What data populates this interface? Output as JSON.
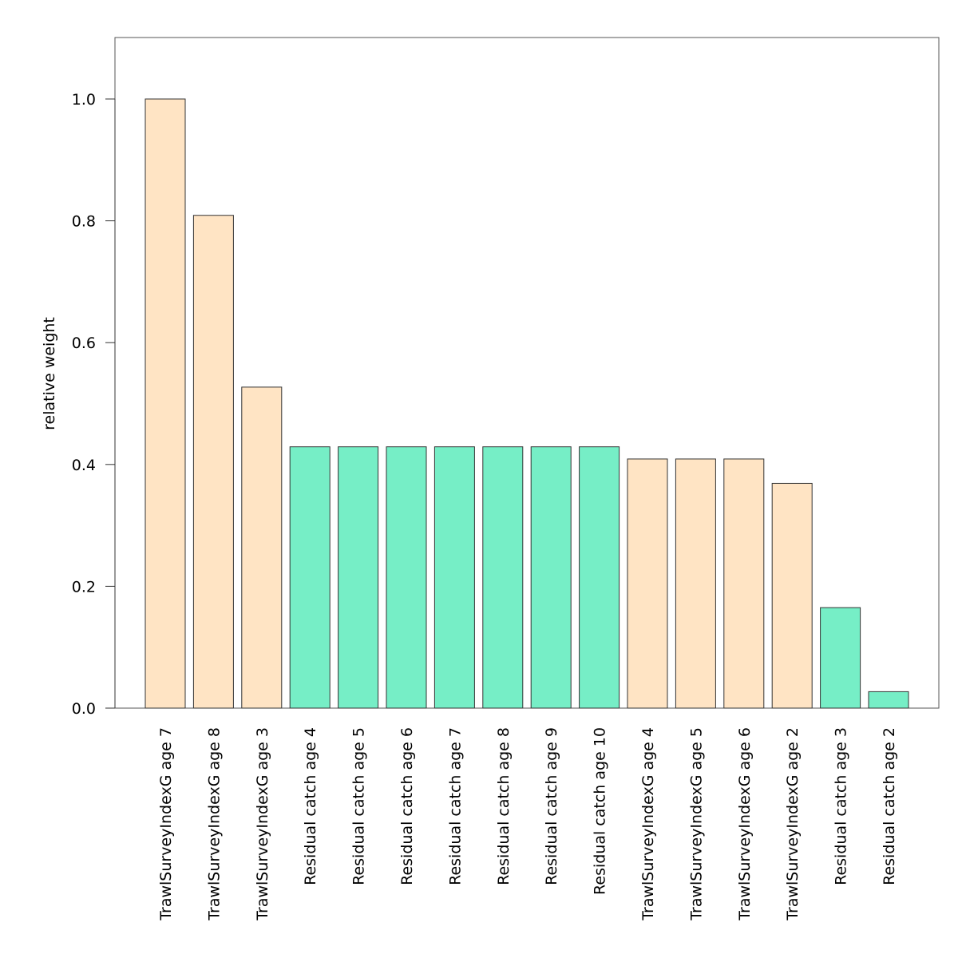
{
  "chart_data": {
    "type": "bar",
    "title": "",
    "xlabel": "",
    "ylabel": "relative weight",
    "ylim": [
      0,
      1.1
    ],
    "yticks": [
      0.0,
      0.2,
      0.4,
      0.6,
      0.8,
      1.0
    ],
    "ytick_labels": [
      "0.0",
      "0.2",
      "0.4",
      "0.6",
      "0.8",
      "1.0"
    ],
    "grid": false,
    "legend": false,
    "categories": [
      "TrawlSurveyIndexG age 7",
      "TrawlSurveyIndexG age 8",
      "TrawlSurveyIndexG age 3",
      "Residual catch age 4",
      "Residual catch age 5",
      "Residual catch age 6",
      "Residual catch age 7",
      "Residual catch age 8",
      "Residual catch age 9",
      "Residual catch age 10",
      "TrawlSurveyIndexG age 4",
      "TrawlSurveyIndexG age 5",
      "TrawlSurveyIndexG age 6",
      "TrawlSurveyIndexG age 2",
      "Residual catch age 3",
      "Residual catch age 2"
    ],
    "values": [
      1.0,
      0.809,
      0.527,
      0.429,
      0.429,
      0.429,
      0.429,
      0.429,
      0.429,
      0.429,
      0.409,
      0.409,
      0.409,
      0.369,
      0.165,
      0.027
    ],
    "bar_colors": [
      "#FFE4C4",
      "#FFE4C4",
      "#FFE4C4",
      "#76EEC6",
      "#76EEC6",
      "#76EEC6",
      "#76EEC6",
      "#76EEC6",
      "#76EEC6",
      "#76EEC6",
      "#FFE4C4",
      "#FFE4C4",
      "#FFE4C4",
      "#FFE4C4",
      "#76EEC6",
      "#76EEC6"
    ]
  }
}
